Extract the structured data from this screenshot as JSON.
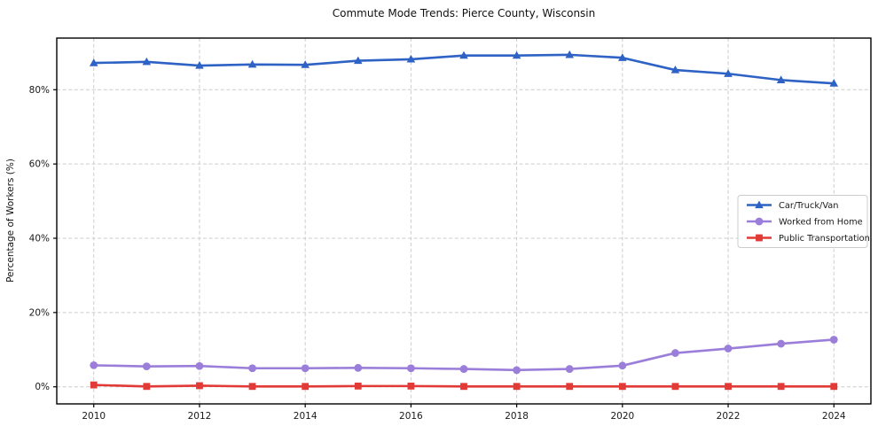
{
  "page": {
    "title": "Commute Mode Trends: Pierce County, Wisconsin"
  },
  "chart_data": {
    "type": "line",
    "title": "Commute Mode Trends: Pierce County, Wisconsin",
    "xlabel": "",
    "ylabel": "Percentage of Workers (%)",
    "x": [
      2010,
      2011,
      2012,
      2013,
      2014,
      2015,
      2016,
      2017,
      2018,
      2019,
      2020,
      2021,
      2022,
      2023,
      2024
    ],
    "series": [
      {
        "name": "Car/Truck/Van",
        "color": "#2e62c4",
        "marker": "triangle",
        "values": [
          87.2,
          87.5,
          86.5,
          86.8,
          86.7,
          87.8,
          88.2,
          89.2,
          89.2,
          89.4,
          88.6,
          85.3,
          84.3,
          82.6,
          81.7
        ]
      },
      {
        "name": "Worked from Home",
        "color": "#9b7ed9",
        "marker": "circle",
        "values": [
          5.8,
          5.5,
          5.6,
          5.0,
          5.0,
          5.1,
          5.0,
          4.8,
          4.5,
          4.8,
          5.7,
          9.1,
          10.3,
          11.6,
          12.7
        ]
      },
      {
        "name": "Public Transportation",
        "color": "#e23a36",
        "marker": "square",
        "values": [
          0.5,
          0.1,
          0.3,
          0.1,
          0.1,
          0.2,
          0.2,
          0.1,
          0.1,
          0.1,
          0.1,
          0.1,
          0.1,
          0.1,
          0.1
        ]
      }
    ],
    "xticks": [
      2010,
      2012,
      2014,
      2016,
      2018,
      2020,
      2022,
      2024
    ],
    "yticks": [
      0,
      20,
      40,
      60,
      80
    ],
    "ytick_suffix": "%",
    "xlim": [
      2009.3,
      2024.7
    ],
    "ylim": [
      -4.6,
      93.9
    ],
    "grid": true,
    "grid_style": "dashed",
    "grid_color": "#cccccc",
    "spine_color": "#000000",
    "legend_position": "center right",
    "legend_entries": [
      "Car/Truck/Van",
      "Worked from Home",
      "Public Transportation"
    ]
  }
}
